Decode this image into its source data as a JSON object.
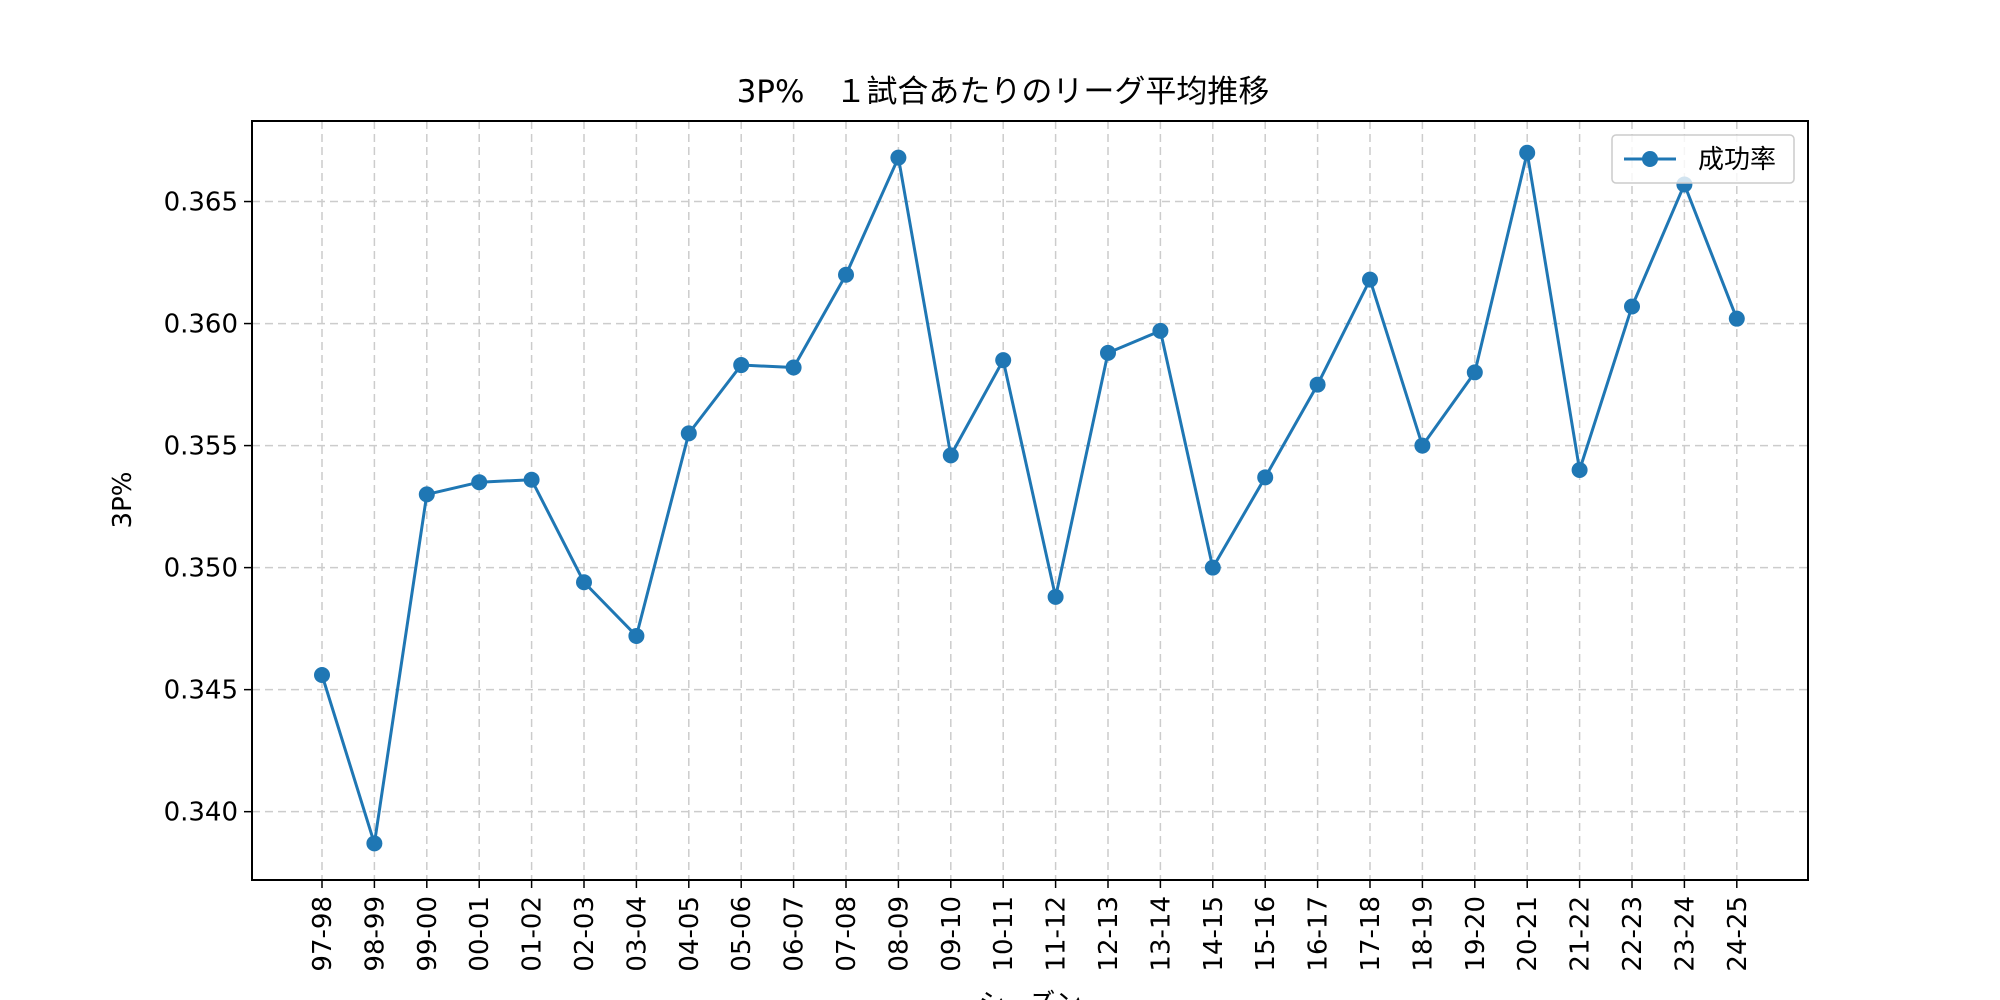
{
  "chart_data": {
    "type": "line",
    "title": "3P%　１試合あたりのリーグ平均推移",
    "xlabel": "シーズン",
    "ylabel": "3P%",
    "ylim": [
      0.3372,
      0.3683
    ],
    "yticks": [
      "0.340",
      "0.345",
      "0.350",
      "0.355",
      "0.360",
      "0.365"
    ],
    "grid": true,
    "legend_position": "upper-right",
    "categories": [
      "97-98",
      "98-99",
      "99-00",
      "00-01",
      "01-02",
      "02-03",
      "03-04",
      "04-05",
      "05-06",
      "06-07",
      "07-08",
      "08-09",
      "09-10",
      "10-11",
      "11-12",
      "12-13",
      "13-14",
      "14-15",
      "15-16",
      "16-17",
      "17-18",
      "18-19",
      "19-20",
      "20-21",
      "21-22",
      "22-23",
      "23-24",
      "24-25"
    ],
    "series": [
      {
        "name": "成功率",
        "color": "#1f77b4",
        "values": [
          0.3456,
          0.3387,
          0.353,
          0.3535,
          0.3536,
          0.3494,
          0.3472,
          0.3555,
          0.3583,
          0.3582,
          0.362,
          0.3668,
          0.3546,
          0.3585,
          0.3488,
          0.3588,
          0.3597,
          0.35,
          0.3537,
          0.3575,
          0.3618,
          0.355,
          0.358,
          0.367,
          0.354,
          0.3607,
          0.3657,
          0.3602
        ]
      }
    ]
  },
  "colors": {
    "series": "#1f77b4",
    "grid": "#cccccc",
    "axes": "#000000"
  }
}
